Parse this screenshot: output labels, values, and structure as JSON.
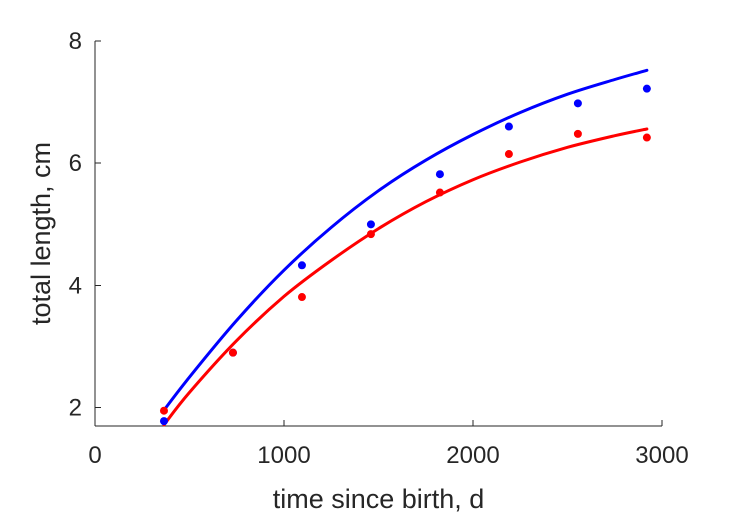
{
  "chart_data": {
    "type": "scatter",
    "xlabel": "time since birth, d",
    "ylabel": "total length, cm",
    "xlim": [
      0,
      3000
    ],
    "ylim": [
      1.7,
      8
    ],
    "xticks": [
      0,
      1000,
      2000,
      3000
    ],
    "xtick_labels": [
      "0",
      "1000",
      "2000",
      "3000"
    ],
    "yticks": [
      2,
      4,
      6,
      8
    ],
    "ytick_labels": [
      "2",
      "4",
      "6",
      "8"
    ],
    "grid": false,
    "box": false,
    "series": [
      {
        "color": "#0000ff",
        "points": {
          "x": [
            365,
            730,
            1095,
            1460,
            1825,
            2190,
            2555,
            2920
          ],
          "y": [
            1.78,
            2.9,
            4.33,
            5.0,
            5.82,
            6.6,
            6.98,
            7.22
          ]
        },
        "curve": {
          "x": [
            365,
            500,
            750,
            1000,
            1250,
            1500,
            1750,
            2000,
            2250,
            2500,
            2750,
            2920
          ],
          "y": [
            1.96,
            2.5,
            3.43,
            4.25,
            4.95,
            5.55,
            6.05,
            6.47,
            6.83,
            7.13,
            7.37,
            7.52
          ]
        }
      },
      {
        "color": "#ff0000",
        "points": {
          "x": [
            365,
            730,
            1095,
            1460,
            1825,
            2190,
            2555,
            2920
          ],
          "y": [
            1.95,
            2.9,
            3.81,
            4.84,
            5.52,
            6.15,
            6.48,
            6.42
          ]
        },
        "curve": {
          "x": [
            365,
            500,
            750,
            1000,
            1250,
            1500,
            1750,
            2000,
            2250,
            2500,
            2750,
            2920
          ],
          "y": [
            1.72,
            2.25,
            3.1,
            3.82,
            4.41,
            4.93,
            5.37,
            5.73,
            6.02,
            6.26,
            6.45,
            6.56
          ]
        }
      }
    ]
  }
}
